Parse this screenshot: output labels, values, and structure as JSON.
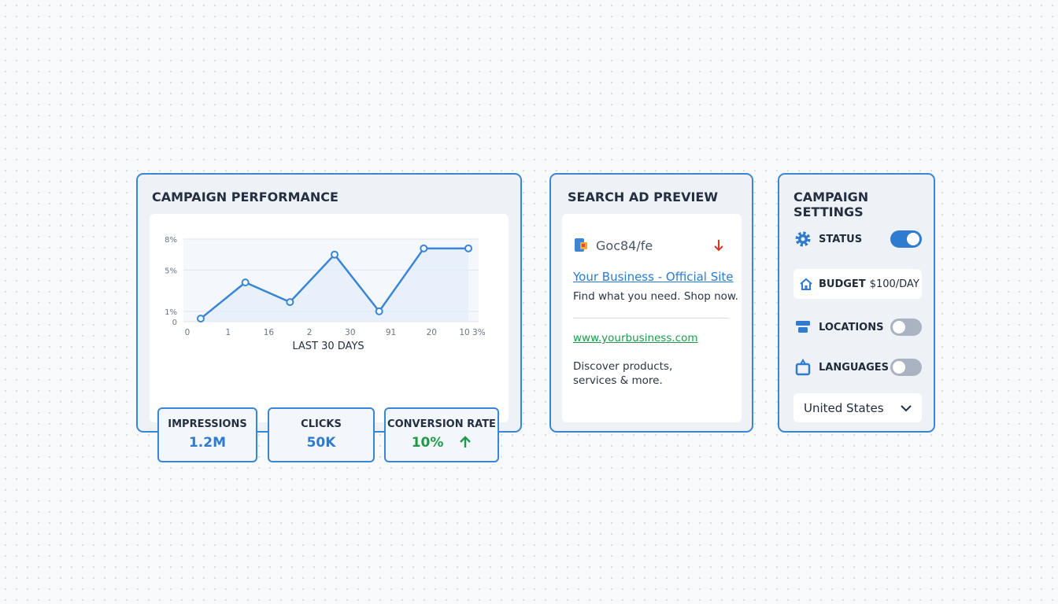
{
  "performance": {
    "title": "CAMPAIGN PERFORMANCE",
    "chart_data": {
      "type": "line",
      "ylim": [
        0,
        8
      ],
      "yticks": [
        {
          "value": 8,
          "label": "8%"
        },
        {
          "value": 5,
          "label": "5%"
        },
        {
          "value": 1,
          "label": "1%"
        },
        0
      ],
      "x_tick_labels": [
        "0",
        "1",
        "16",
        "2",
        "30",
        "91",
        "20",
        "10 3%"
      ],
      "x_label": "LAST 30 DAYS",
      "series": [
        {
          "color": "#3a86d6",
          "values": [
            0.3,
            3.8,
            1.9,
            6.5,
            1.0,
            7.1,
            7.1
          ]
        }
      ],
      "grid": true
    },
    "metrics": [
      {
        "label": "IMPRESSIONS",
        "value": "1.2M"
      },
      {
        "label": "CLICKS",
        "value": "50K"
      },
      {
        "label": "CONVERSION RATE",
        "value": "10%"
      }
    ]
  },
  "ad_preview": {
    "title": "SEARCH AD PREVIEW",
    "brand": "Goc84/fe",
    "headline": "Your Business - Official Site",
    "tagline": "Find what you need. Shop now.",
    "url": "www.yourbusiness.com",
    "description": "Discover products, services & more."
  },
  "settings": {
    "title": "CAMPAIGN SETTINGS",
    "status": {
      "label": "STATUS",
      "on": true
    },
    "budget": {
      "label": "BUDGET",
      "value": "$100/DAY"
    },
    "locations": {
      "label": "LOCATIONS",
      "on": false
    },
    "languages": {
      "label": "LANGUAGES",
      "on": false
    },
    "country": "United States"
  }
}
